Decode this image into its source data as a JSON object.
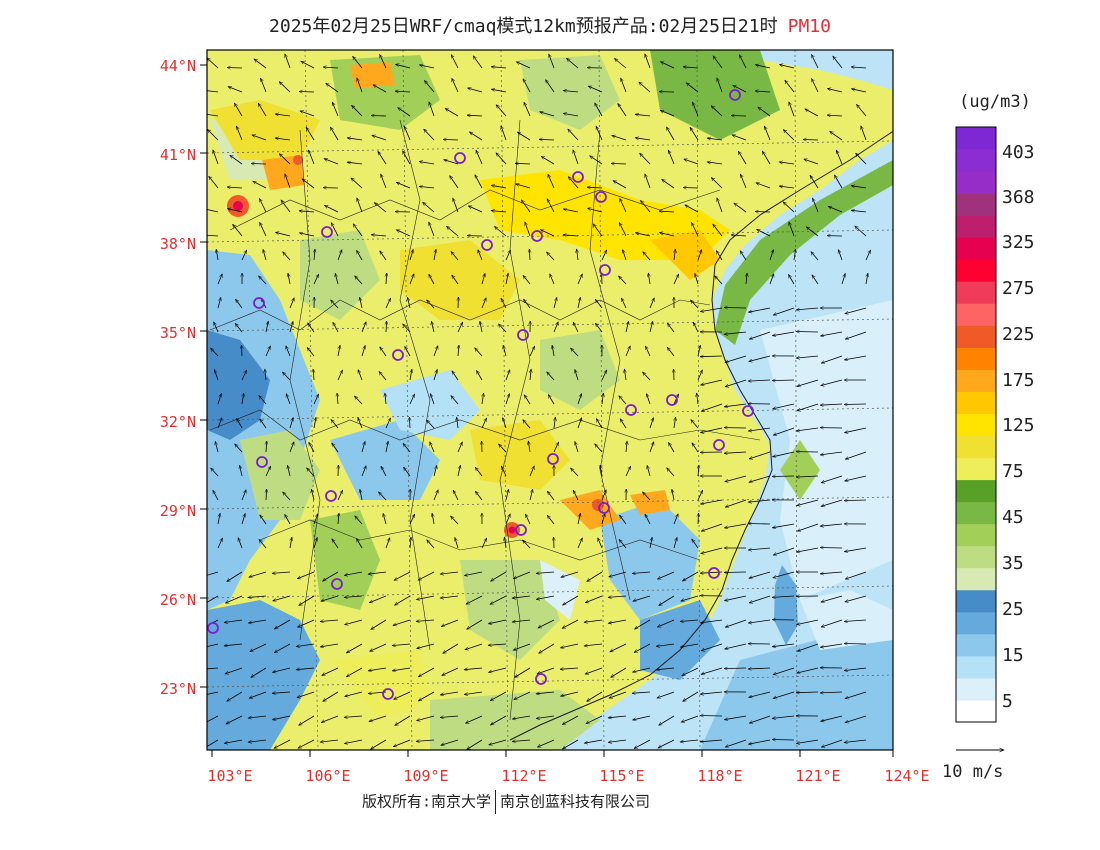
{
  "title": {
    "main": "2025年02月25日WRF/cmaq模式12km预报产品:02月25日21时",
    "pollutant": "PM10",
    "pollutant_color": "#e0303a"
  },
  "map": {
    "lat_labels": [
      "44°N",
      "41°N",
      "38°N",
      "35°N",
      "32°N",
      "29°N",
      "26°N",
      "23°N"
    ],
    "lon_labels": [
      "103°E",
      "106°E",
      "109°E",
      "112°E",
      "115°E",
      "118°E",
      "121°E",
      "124°E"
    ],
    "label_color": "#e03030"
  },
  "colorbar": {
    "units": "(ug/m3)",
    "colors": [
      "#ffffff",
      "#dcf0fa",
      "#b4e1f5",
      "#8cc8ec",
      "#64aadc",
      "#468cc8",
      "#d8eab4",
      "#bedd82",
      "#a2cf58",
      "#7ab846",
      "#58a028",
      "#eeee5a",
      "#f0e032",
      "#ffe400",
      "#ffc800",
      "#ffa81e",
      "#ff8200",
      "#f05a28",
      "#ff6464",
      "#f03c5a",
      "#ff0032",
      "#e60050",
      "#be1e6e",
      "#a0327d",
      "#962dc8",
      "#8c2dd2",
      "#7d28d2"
    ],
    "labels": [
      "403",
      "368",
      "325",
      "275",
      "225",
      "175",
      "125",
      "75",
      "45",
      "35",
      "25",
      "15",
      "5"
    ]
  },
  "wind_legend": {
    "label": "10 m/s"
  },
  "footer": {
    "left": "版权所有:南京大学",
    "right": "南京创蓝科技有限公司"
  }
}
